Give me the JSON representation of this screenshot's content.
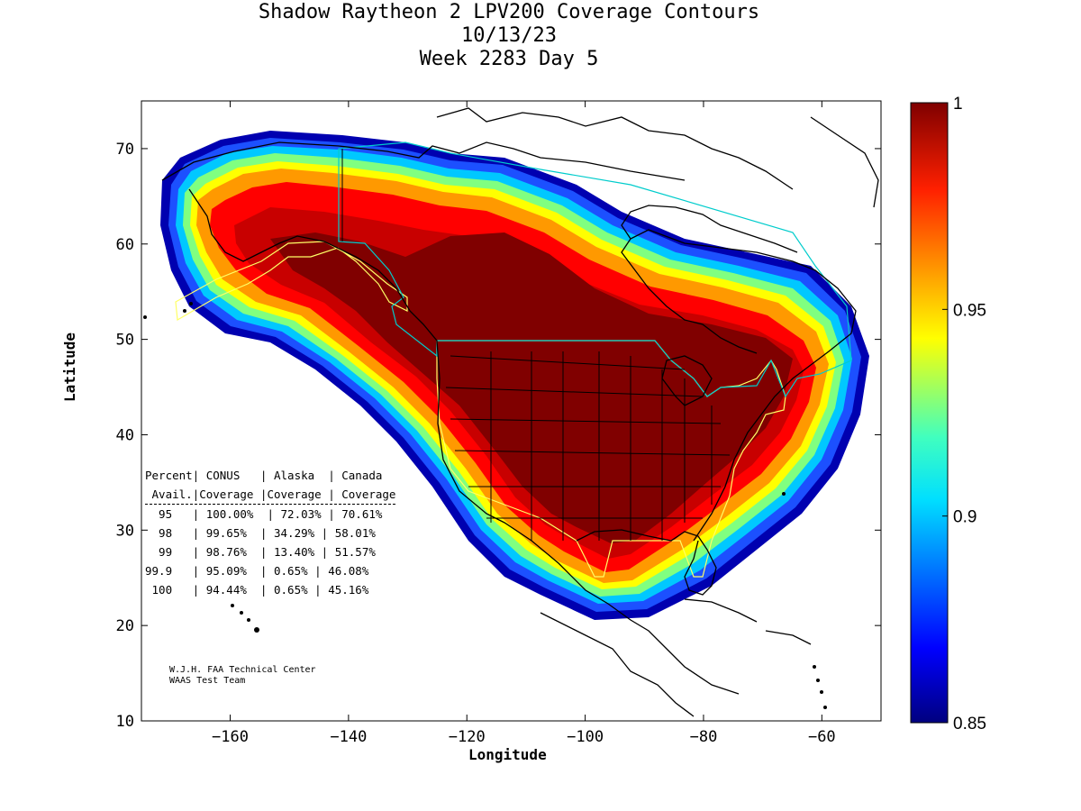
{
  "title": {
    "line1": "Shadow Raytheon 2 LPV200 Coverage Contours",
    "line2": "10/13/23",
    "line3": "Week 2283 Day 5"
  },
  "axes": {
    "xlabel": "Longitude",
    "ylabel": "Latitude",
    "xlim": [
      -175,
      -50
    ],
    "ylim": [
      10,
      75
    ],
    "xticks": [
      -160,
      -140,
      -120,
      -100,
      -80,
      -60
    ],
    "yticks": [
      10,
      20,
      30,
      40,
      50,
      60,
      70
    ],
    "grid": false
  },
  "colorbar": {
    "min": 0.85,
    "max": 1,
    "ticks": [
      "1",
      "0.95",
      "0.9",
      "0.85"
    ],
    "tick_values": [
      1,
      0.95,
      0.9,
      0.85
    ],
    "colormap": "jet"
  },
  "stats_table": {
    "header1": "Percent| CONUS   | Alaska  | Canada",
    "header2": " Avail.|Coverage |Coverage | Coverage",
    "rows": [
      "  95   | 100.00%  | 72.03% | 70.61%",
      "  98   | 99.65%  | 34.29% | 58.01%",
      "  99   | 98.76%  | 13.40% | 51.57%",
      "99.9   | 95.09%  | 0.65% | 46.08%",
      " 100   | 94.44%  | 0.65% | 45.16%"
    ]
  },
  "credit": {
    "line1": "W.J.H. FAA Technical Center",
    "line2": "WAAS Test Team"
  },
  "colors": {
    "coverage_max": "#800000",
    "boundary_outline": "#ffff66",
    "canada_outline": "#00cccc",
    "coastline": "#000000"
  }
}
